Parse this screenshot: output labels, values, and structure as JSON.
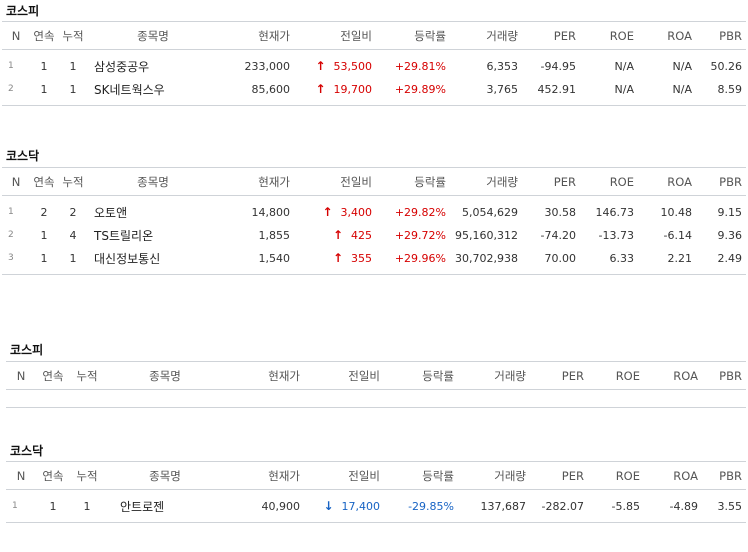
{
  "columns": [
    "N",
    "연속",
    "누적",
    "종목명",
    "현재가",
    "전일비",
    "등락률",
    "거래량",
    "PER",
    "ROE",
    "ROA",
    "PBR"
  ],
  "sections": [
    {
      "title": "코스피",
      "rows": [
        {
          "n": "1",
          "streak": "1",
          "total": "1",
          "name": "삼성중공우",
          "price": "233,000",
          "dir": "up",
          "change": "53,500",
          "rate": "+29.81%",
          "volume": "6,353",
          "per": "-94.95",
          "roe": "N/A",
          "roa": "N/A",
          "pbr": "50.26"
        },
        {
          "n": "2",
          "streak": "1",
          "total": "1",
          "name": "SK네트웍스우",
          "price": "85,600",
          "dir": "up",
          "change": "19,700",
          "rate": "+29.89%",
          "volume": "3,765",
          "per": "452.91",
          "roe": "N/A",
          "roa": "N/A",
          "pbr": "8.59"
        }
      ]
    },
    {
      "title": "코스닥",
      "rows": [
        {
          "n": "1",
          "streak": "2",
          "total": "2",
          "name": "오토앤",
          "price": "14,800",
          "dir": "up",
          "change": "3,400",
          "rate": "+29.82%",
          "volume": "5,054,629",
          "per": "30.58",
          "roe": "146.73",
          "roa": "10.48",
          "pbr": "9.15"
        },
        {
          "n": "2",
          "streak": "1",
          "total": "4",
          "name": "TS트릴리온",
          "price": "1,855",
          "dir": "up",
          "change": "425",
          "rate": "+29.72%",
          "volume": "95,160,312",
          "per": "-74.20",
          "roe": "-13.73",
          "roa": "-6.14",
          "pbr": "9.36"
        },
        {
          "n": "3",
          "streak": "1",
          "total": "1",
          "name": "대신정보통신",
          "price": "1,540",
          "dir": "up",
          "change": "355",
          "rate": "+29.96%",
          "volume": "30,702,938",
          "per": "70.00",
          "roe": "6.33",
          "roa": "2.21",
          "pbr": "2.49"
        }
      ]
    },
    {
      "title": "코스피",
      "rows": []
    },
    {
      "title": "코스닥",
      "rows": [
        {
          "n": "1",
          "streak": "1",
          "total": "1",
          "name": "안트로젠",
          "price": "40,900",
          "dir": "down",
          "change": "17,400",
          "rate": "-29.85%",
          "volume": "137,687",
          "per": "-282.07",
          "roe": "-5.85",
          "roa": "-4.89",
          "pbr": "3.55"
        }
      ]
    }
  ],
  "colors": {
    "up": "#d60000",
    "down": "#1763c4",
    "border": "#cfd3d8"
  },
  "icons": {
    "up": "arrow-up-icon",
    "down": "arrow-down-icon"
  }
}
